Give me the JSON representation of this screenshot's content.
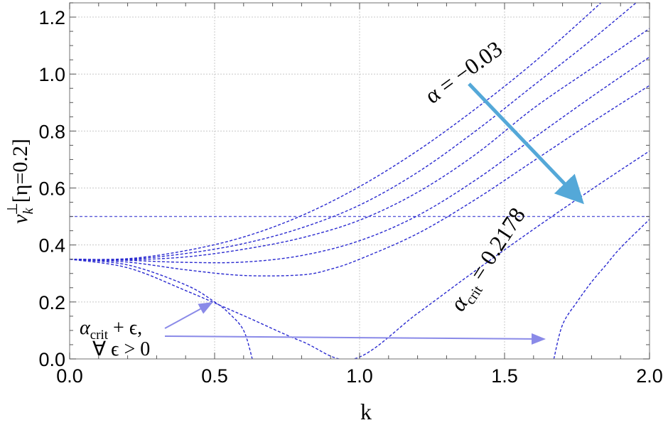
{
  "chart_data": {
    "type": "line",
    "xlabel": "k",
    "ylabel": {
      "nu": "ν",
      "sub": "k",
      "sup": "⊥",
      "bracket": "[η=0.2]"
    },
    "xlim": [
      0,
      2.0
    ],
    "ylim": [
      0,
      1.25
    ],
    "xticks": [
      "0.0",
      "0.5",
      "1.0",
      "1.5",
      "2.0"
    ],
    "yticks": [
      "0.0",
      "0.2",
      "0.4",
      "0.6",
      "0.8",
      "1.0",
      "1.2"
    ],
    "grid": true,
    "line_style": "dashed",
    "line_color": "#2a2ad0",
    "reference_line": {
      "y": 0.5,
      "color": "#5a5ad8"
    },
    "series": [
      {
        "x": [
          0,
          0.2,
          0.4,
          0.6,
          0.8,
          1.0,
          1.2,
          1.4,
          1.6,
          1.8,
          2.0
        ],
        "y": [
          0.35,
          0.352,
          0.38,
          0.428,
          0.503,
          0.605,
          0.731,
          0.878,
          1.04,
          1.22,
          1.41
        ]
      },
      {
        "x": [
          0,
          0.2,
          0.4,
          0.6,
          0.8,
          1.0,
          1.2,
          1.4,
          1.6,
          1.8,
          2.0
        ],
        "y": [
          0.35,
          0.35,
          0.37,
          0.405,
          0.46,
          0.54,
          0.655,
          0.8,
          0.96,
          1.12,
          1.29
        ]
      },
      {
        "x": [
          0,
          0.2,
          0.4,
          0.6,
          0.8,
          1.0,
          1.2,
          1.4,
          1.6,
          1.8,
          2.0
        ],
        "y": [
          0.35,
          0.348,
          0.358,
          0.385,
          0.425,
          0.487,
          0.585,
          0.718,
          0.88,
          1.02,
          1.16
        ]
      },
      {
        "x": [
          0,
          0.2,
          0.4,
          0.6,
          0.8,
          1.0,
          1.2,
          1.4,
          1.6,
          1.8,
          2.0
        ],
        "y": [
          0.35,
          0.346,
          0.339,
          0.34,
          0.363,
          0.415,
          0.503,
          0.628,
          0.775,
          0.92,
          1.06
        ]
      },
      {
        "x": [
          0,
          0.2,
          0.4,
          0.6,
          0.8,
          0.9,
          1.0,
          1.2,
          1.4,
          1.6,
          1.8,
          2.0
        ],
        "y": [
          0.35,
          0.34,
          0.313,
          0.293,
          0.295,
          0.315,
          0.35,
          0.44,
          0.56,
          0.695,
          0.83,
          0.96
        ]
      },
      {
        "x": [
          0,
          0.2,
          0.4,
          0.6,
          0.8,
          0.98,
          1.2,
          1.4,
          1.6,
          1.8,
          2.0
        ],
        "y": [
          0.35,
          0.32,
          0.24,
          0.152,
          0.062,
          0.0,
          0.16,
          0.31,
          0.455,
          0.595,
          0.73
        ]
      },
      {
        "x": [
          0,
          0.2,
          0.4,
          0.5,
          0.55,
          0.6,
          0.63
        ],
        "y": [
          0.35,
          0.33,
          0.26,
          0.2,
          0.16,
          0.1,
          0.0
        ]
      },
      {
        "x": [
          1.67,
          1.7,
          1.75,
          1.8,
          1.85,
          1.9,
          2.0
        ],
        "y": [
          0.0,
          0.12,
          0.2,
          0.27,
          0.33,
          0.39,
          0.49
        ]
      }
    ],
    "annotations": {
      "alpha_top": {
        "label": "α = −0.03"
      },
      "alpha_crit": {
        "alpha": "α",
        "sub": "crit",
        "rest": " = 0.2178"
      },
      "alpha_eps_line1": {
        "alpha": "α",
        "sub": "crit",
        "rest": " + ϵ,"
      },
      "alpha_eps_line2": "∀ ϵ > 0",
      "arrow_color": "#54a8d8",
      "small_arrow_color": "#8a8ae8"
    }
  }
}
